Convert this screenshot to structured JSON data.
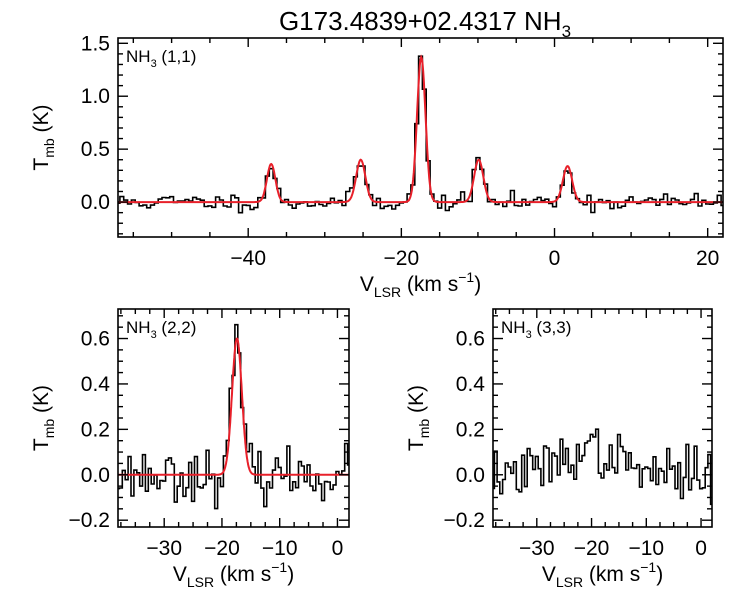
{
  "title": {
    "main": "G173.4839+02.4317 NH",
    "sub": "3"
  },
  "colors": {
    "data": "#000000",
    "fit": "#e8202a",
    "frame": "#000000"
  },
  "chart_data": [
    {
      "type": "line",
      "panel_label": {
        "main": "NH",
        "sub": "3",
        "rest": " (1,1)"
      },
      "ylabel": {
        "main": "T",
        "sub": "mb",
        "rest": " (K)"
      },
      "xlabel": {
        "main": "V",
        "sub": "LSR",
        "rest": " (km s",
        "sup": "−1",
        "end": ")"
      },
      "xlim": [
        -57,
        22
      ],
      "ylim": [
        -0.33,
        1.55
      ],
      "xticks": [
        -40,
        -20,
        0,
        20
      ],
      "xticklabels": [
        "−40",
        "−20",
        "0",
        "20"
      ],
      "yticks": [
        0.0,
        0.5,
        1.0,
        1.5
      ],
      "yticklabels": [
        "0.0",
        "0.5",
        "1.0",
        "1.5"
      ],
      "series": [
        {
          "style": "step",
          "x_range": [
            -57,
            22
          ],
          "step": 0.5,
          "noise": 0.04,
          "seed": 11
        },
        {
          "style": "fit",
          "components": [
            {
              "center": -37.0,
              "amp": 0.36,
              "sigma": 0.55
            },
            {
              "center": -25.3,
              "amp": 0.4,
              "sigma": 0.6
            },
            {
              "center": -17.4,
              "amp": 1.37,
              "sigma": 0.55
            },
            {
              "center": -9.9,
              "amp": 0.4,
              "sigma": 0.6
            },
            {
              "center": 1.7,
              "amp": 0.34,
              "sigma": 0.6
            }
          ]
        }
      ]
    },
    {
      "type": "line",
      "panel_label": {
        "main": "NH",
        "sub": "3",
        "rest": " (2,2)"
      },
      "ylabel": {
        "main": "T",
        "sub": "mb",
        "rest": " (K)"
      },
      "xlabel": {
        "main": "V",
        "sub": "LSR",
        "rest": " (km s",
        "sup": "−1",
        "end": ")"
      },
      "xlim": [
        -38,
        2
      ],
      "ylim": [
        -0.23,
        0.73
      ],
      "xticks": [
        -30,
        -20,
        -10,
        0
      ],
      "xticklabels": [
        "−30",
        "−20",
        "−10",
        "0"
      ],
      "yticks": [
        -0.2,
        0.0,
        0.2,
        0.4,
        0.6
      ],
      "yticklabels": [
        "−0.2",
        "0.0",
        "0.2",
        "0.4",
        "0.6"
      ],
      "series": [
        {
          "style": "step",
          "x_range": [
            -38,
            2
          ],
          "step": 0.5,
          "noise": 0.055,
          "seed": 23
        },
        {
          "style": "fit",
          "components": [
            {
              "center": -17.4,
              "amp": 0.6,
              "sigma": 0.85
            }
          ]
        }
      ]
    },
    {
      "type": "line",
      "panel_label": {
        "main": "NH",
        "sub": "3",
        "rest": " (3,3)"
      },
      "ylabel": {
        "main": "T",
        "sub": "mb",
        "rest": " (K)"
      },
      "xlabel": {
        "main": "V",
        "sub": "LSR",
        "rest": " (km s",
        "sup": "−1",
        "end": ")"
      },
      "xlim": [
        -38,
        2
      ],
      "ylim": [
        -0.23,
        0.73
      ],
      "xticks": [
        -30,
        -20,
        -10,
        0
      ],
      "xticklabels": [
        "−30",
        "−20",
        "−10",
        "0"
      ],
      "yticks": [
        -0.2,
        0.0,
        0.2,
        0.4,
        0.6
      ],
      "yticklabels": [
        "−0.2",
        "0.0",
        "0.2",
        "0.4",
        "0.6"
      ],
      "series": [
        {
          "style": "step",
          "x_range": [
            -38,
            2
          ],
          "step": 0.5,
          "noise": 0.055,
          "seed": 37,
          "broad_bump": {
            "center": -20.5,
            "amp": 0.11,
            "sigma": 5.0
          }
        }
      ]
    }
  ]
}
